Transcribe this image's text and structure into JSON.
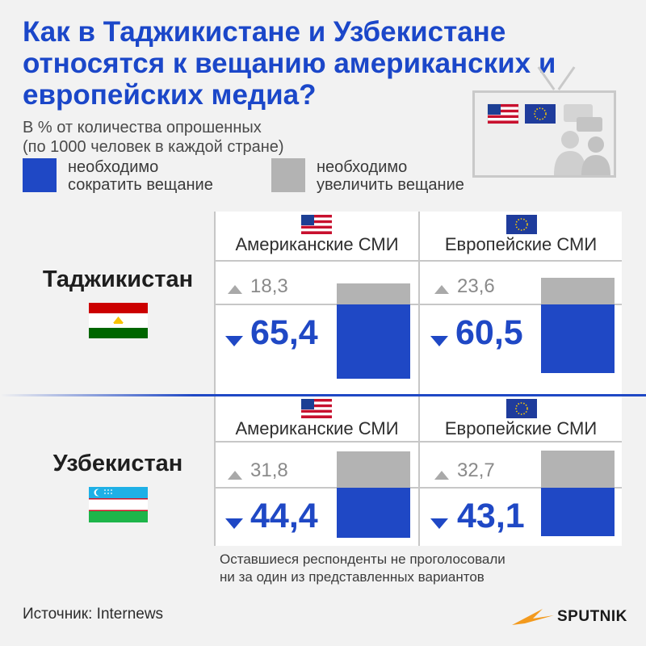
{
  "title": "Как в Таджикистане и Узбекистане относятся к вещанию американских и европейских медиа?",
  "subtitle": [
    "В % от количества опрошенных",
    "(по 1000 человек в каждой стране)"
  ],
  "legend": [
    {
      "label": "необходимо сократить вещание",
      "lines": [
        "необходимо",
        "сократить вещание"
      ],
      "color": "#1f48c5"
    },
    {
      "label": "необходимо увеличить вещание",
      "lines": [
        "необходимо",
        "увеличить вещание"
      ],
      "color": "#b3b3b3"
    }
  ],
  "chart_data": {
    "type": "bar",
    "categories": [
      "Таджикистан",
      "Узбекистан"
    ],
    "media": [
      "Американские СМИ",
      "Европейские СМИ"
    ],
    "series": [
      {
        "name": "необходимо сократить вещание",
        "color": "#1f48c5",
        "values": {
          "Таджикистан": {
            "Американские СМИ": 65.4,
            "Европейские СМИ": 60.5
          },
          "Узбекистан": {
            "Американские СМИ": 44.4,
            "Европейские СМИ": 43.1
          }
        }
      },
      {
        "name": "необходимо увеличить вещание",
        "color": "#b3b3b3",
        "values": {
          "Таджикистан": {
            "Американские СМИ": 18.3,
            "Европейские СМИ": 23.6
          },
          "Узбекистан": {
            "Американские СМИ": 31.8,
            "Европейские СМИ": 32.7
          }
        }
      }
    ],
    "display_values": {
      "tj": {
        "us": {
          "decrease": "65,4",
          "increase": "18,3"
        },
        "eu": {
          "decrease": "60,5",
          "increase": "23,6"
        }
      },
      "uz": {
        "us": {
          "decrease": "44,4",
          "increase": "31,8"
        },
        "eu": {
          "decrease": "43,1",
          "increase": "32,7"
        }
      }
    },
    "ylim": [
      0,
      100
    ],
    "grid": false
  },
  "countries": {
    "tj": "Таджикистан",
    "uz": "Узбекистан"
  },
  "media_labels": {
    "us": "Американские СМИ",
    "eu": "Европейские СМИ"
  },
  "note": [
    "Оставшиеся респонденты не проголосовали",
    "ни за один из представленных вариантов"
  ],
  "source": "Источник: Internews",
  "brand": "SPUTNIK",
  "colors": {
    "title": "#1b47c9",
    "decrease": "#1f48c5",
    "increase": "#b3b3b3",
    "background": "#f2f2f2"
  },
  "icons": [
    "us-flag-icon",
    "eu-flag-icon",
    "tajikistan-flag-icon",
    "uzbekistan-flag-icon",
    "tv-illustration-icon",
    "sputnik-logo-icon"
  ]
}
